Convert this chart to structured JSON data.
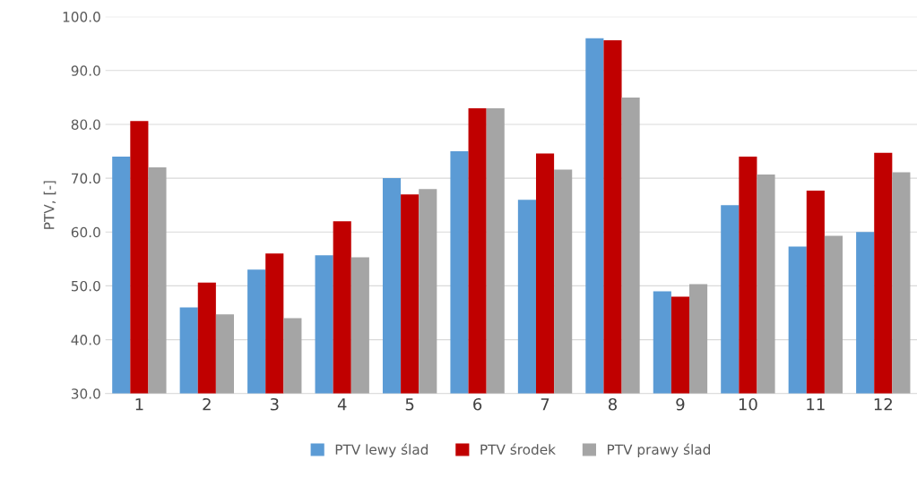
{
  "chart_data": {
    "type": "bar",
    "ylabel": "PTV, [-]",
    "categories": [
      "1",
      "2",
      "3",
      "4",
      "5",
      "6",
      "7",
      "8",
      "9",
      "10",
      "11",
      "12"
    ],
    "series": [
      {
        "name": "PTV lewy ślad",
        "color": "#5b9bd5",
        "values": [
          74.0,
          46.0,
          53.0,
          55.7,
          70.0,
          75.0,
          66.0,
          96.0,
          49.0,
          65.0,
          57.3,
          60.0
        ]
      },
      {
        "name": "PTV środek",
        "color": "#c00000",
        "values": [
          80.6,
          50.6,
          56.0,
          62.0,
          67.0,
          83.0,
          74.6,
          95.6,
          48.0,
          74.0,
          67.7,
          74.7
        ]
      },
      {
        "name": "PTV prawy ślad",
        "color": "#a5a5a5",
        "values": [
          72.0,
          44.7,
          44.0,
          55.3,
          68.0,
          83.0,
          71.6,
          85.0,
          50.3,
          70.7,
          59.3,
          71.1
        ]
      }
    ],
    "ylim": [
      30,
      100
    ],
    "yticks": [
      {
        "value": 30,
        "label": "30.0"
      },
      {
        "value": 40,
        "label": "40.0"
      },
      {
        "value": 50,
        "label": "50.0"
      },
      {
        "value": 60,
        "label": "60.0"
      },
      {
        "value": 70,
        "label": "70.0"
      },
      {
        "value": 80,
        "label": "80.0"
      },
      {
        "value": 90,
        "label": "90.0"
      },
      {
        "value": 100,
        "label": "100.0"
      }
    ],
    "grid": "y",
    "legend": "bottom"
  }
}
